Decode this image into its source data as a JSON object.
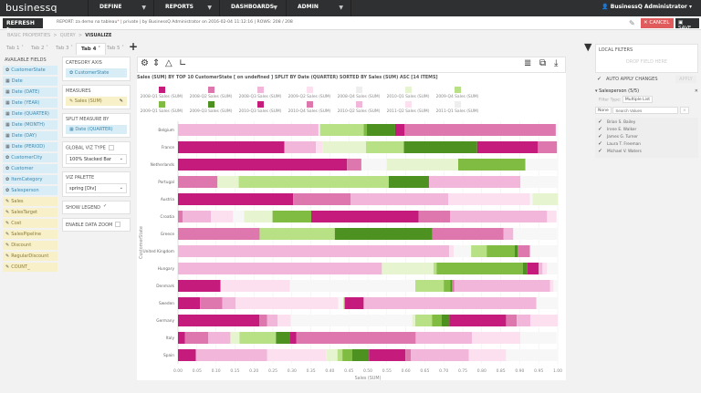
{
  "app": {
    "logo": "businessq",
    "user": "BusinessQ Administrator",
    "nav": [
      "DEFINE",
      "REPORTS",
      "DASHBOARDS",
      "ADMIN"
    ]
  },
  "toolbar": {
    "refresh": "REFRESH",
    "report_label": "REPORT:",
    "report_name": "za demo na tableau",
    "privacy": "private",
    "by": "by BusinessQ Administrator on",
    "date": "2016-02-04 11:12:16",
    "rows_label": "ROWS:",
    "rows": "208 / 208",
    "cancel": "CANCEL",
    "save": "SAVE"
  },
  "breadcrumb": [
    "BASIC PROPERTIES",
    "QUERY",
    "VISUALIZE"
  ],
  "tabs": [
    "Tab 1",
    "Tab 2",
    "Tab 3",
    "Tab 4",
    "Tab 5"
  ],
  "active_tab": "Tab 4",
  "fields": {
    "title": "AVAILABLE FIELDS",
    "items": [
      {
        "label": "CustomerState",
        "kind": "dim",
        "icon": "gear-icon"
      },
      {
        "label": "Date",
        "kind": "dim",
        "icon": "calendar-icon"
      },
      {
        "label": "Date (DATE)",
        "kind": "dim",
        "icon": "calendar-icon"
      },
      {
        "label": "Date (YEAR)",
        "kind": "dim",
        "icon": "calendar-icon"
      },
      {
        "label": "Date (QUARTER)",
        "kind": "dim",
        "icon": "calendar-icon"
      },
      {
        "label": "Date (MONTH)",
        "kind": "dim",
        "icon": "calendar-icon"
      },
      {
        "label": "Date (DAY)",
        "kind": "dim",
        "icon": "calendar-icon"
      },
      {
        "label": "Date (PERIOD)",
        "kind": "dim",
        "icon": "calendar-icon"
      },
      {
        "label": "CustomerCity",
        "kind": "dim",
        "icon": "gear-icon"
      },
      {
        "label": "Customer",
        "kind": "dim",
        "icon": "gear-icon"
      },
      {
        "label": "ItemCategory",
        "kind": "dim",
        "icon": "gear-icon"
      },
      {
        "label": "Salesperson",
        "kind": "dim",
        "icon": "gear-icon"
      },
      {
        "label": "Sales",
        "kind": "measure",
        "icon": "ruler-icon"
      },
      {
        "label": "SalesTarget",
        "kind": "measure",
        "icon": "ruler-icon"
      },
      {
        "label": "Cost",
        "kind": "measure",
        "icon": "ruler-icon"
      },
      {
        "label": "SalesPipeline",
        "kind": "measure",
        "icon": "ruler-icon"
      },
      {
        "label": "Discount",
        "kind": "measure",
        "icon": "ruler-icon"
      },
      {
        "label": "RegularDiscount",
        "kind": "measure",
        "icon": "ruler-icon"
      },
      {
        "label": "COUNT_",
        "kind": "measure",
        "icon": "ruler-icon"
      }
    ]
  },
  "config": {
    "category_axis": {
      "title": "CATEGORY AXIS",
      "value": "CustomerState"
    },
    "measures": {
      "title": "MEASURES",
      "value": "Sales (SUM)"
    },
    "split": {
      "title": "SPLIT MEASURE BY",
      "value": "Date (QUARTER)"
    },
    "viz_type": {
      "title": "GLOBAL VIZ TYPE",
      "value": "100% Stacked Bar"
    },
    "palette": {
      "title": "VIZ PALETTE",
      "value": "spring [Div]"
    },
    "show_legend": {
      "label": "SHOW LEGEND",
      "checked": true
    },
    "data_zoom": {
      "label": "ENABLE DATA ZOOM",
      "checked": false
    }
  },
  "filters": {
    "title": "LOCAL FILTERS",
    "drop": "DROP FIELD HERE",
    "auto_apply": "AUTO APPLY CHANGES",
    "apply": "APPLY",
    "field": "Salesperson (5/5)",
    "filter_type_label": "Filter Type:",
    "filter_type": "Multiple List",
    "none": "None",
    "search_placeholder": "Search Values",
    "names": [
      "Brian S. Bailey",
      "Irene E. Walker",
      "James G. Turner",
      "Laura T. Freeman",
      "Michael V. Waters"
    ]
  },
  "chart_data": {
    "type": "bar",
    "orientation": "horizontal",
    "stacked": "100%",
    "title": "Sales (SUM) BY TOP 10 CustomerState [ on undefined ] SPLIT BY Date (QUARTER) SORTED BY Sales (SUM) ASC [14 ITEMS]",
    "xlabel": "Sales (SUM)",
    "ylabel": "CustomerState",
    "xlim": [
      0,
      1
    ],
    "grid": true,
    "legend": "top",
    "xticks": [
      "0.00",
      "0.05",
      "0.10",
      "0.15",
      "0.20",
      "0.25",
      "0.30",
      "0.35",
      "0.40",
      "0.45",
      "0.50",
      "0.55",
      "0.60",
      "0.65",
      "0.70",
      "0.75",
      "0.80",
      "0.85",
      "0.90",
      "0.95",
      "1.00"
    ],
    "categories": [
      "Belgium",
      "France",
      "Netherlands",
      "Portugal",
      "Austria",
      "Croatia",
      "Greece",
      "United Kingdom",
      "Hungary",
      "Denmark",
      "Sweden",
      "Germany",
      "Italy",
      "Spain"
    ],
    "series": [
      {
        "name": "2008-Q1 Sales (SUM)",
        "color": "#c51b7d",
        "values": [
          0,
          0.28,
          0.445,
          0,
          0.303,
          0,
          0,
          0,
          0,
          0.112,
          0.058,
          0.214,
          0.018,
          0.047
        ]
      },
      {
        "name": "2008-Q2 Sales (SUM)",
        "color": "#de77ae",
        "values": [
          0,
          0,
          0.038,
          0.104,
          0.152,
          0.012,
          0.215,
          0,
          0,
          0,
          0.059,
          0.021,
          0.062,
          0
        ]
      },
      {
        "name": "2008-Q3 Sales (SUM)",
        "color": "#f1b6da",
        "values": [
          0.37,
          0.083,
          0,
          0,
          0.257,
          0.075,
          0,
          0.714,
          0.537,
          0,
          0.035,
          0.027,
          0.058,
          0.188
        ]
      },
      {
        "name": "2009-Q2 Sales (SUM)",
        "color": "#fde0ef",
        "values": [
          0,
          0.017,
          0,
          0,
          0.215,
          0.058,
          0,
          0.012,
          0,
          0.183,
          0.27,
          0.035,
          0,
          0.155
        ]
      },
      {
        "name": "2008-Q4 Sales (SUM)",
        "color": "#f7f7f7",
        "values": [
          0.004,
          0,
          0.067,
          0,
          0.007,
          0.029,
          0,
          0.046,
          0,
          0.33,
          0.014,
          0.32,
          0,
          0
        ]
      },
      {
        "name": "2010-Q1 Sales (SUM)",
        "color": "#e6f5d0",
        "values": [
          0,
          0.115,
          0.188,
          0.056,
          0.067,
          0.075,
          0,
          0,
          0.136,
          0,
          0,
          0.008,
          0.024,
          0.03
        ]
      },
      {
        "name": "2009-Q4 Sales (SUM)",
        "color": "#b8e186",
        "values": [
          0.115,
          0.1,
          0,
          0.395,
          0,
          0,
          0.198,
          0.041,
          0.008,
          0.075,
          0.003,
          0.044,
          0.096,
          0.013
        ]
      },
      {
        "name": "2009-Q1 Sales (SUM)",
        "color": "#7fbc41",
        "values": [
          0.008,
          0,
          0.177,
          0,
          0,
          0.102,
          0,
          0.074,
          0.227,
          0.017,
          0,
          0.025,
          0,
          0.026
        ]
      },
      {
        "name": "2009-Q3 Sales (SUM)",
        "color": "#4d9221",
        "values": [
          0.075,
          0.193,
          0,
          0.106,
          0,
          0,
          0.257,
          0.008,
          0.012,
          0.005,
          0,
          0.021,
          0.036,
          0.044
        ]
      },
      {
        "name": "2010-Q3 Sales (SUM)",
        "color": "#c51b7d",
        "values": [
          0.025,
          0.16,
          0,
          0,
          0,
          0.283,
          0,
          0,
          0.03,
          0,
          0.05,
          0.149,
          0.018,
          0.096
        ]
      },
      {
        "name": "2010-Q4 Sales (SUM)",
        "color": "#de77ae",
        "values": [
          0.398,
          0.05,
          0,
          0,
          0,
          0.083,
          0.187,
          0.032,
          0,
          0.006,
          0,
          0.028,
          0.314,
          0.014
        ]
      },
      {
        "name": "2010-Q2 Sales (SUM)",
        "color": "#f1b6da",
        "values": [
          0,
          0,
          0,
          0.241,
          0,
          0.255,
          0.026,
          0,
          0.01,
          0.252,
          0.455,
          0.036,
          0.148,
          0.153
        ]
      },
      {
        "name": "2011-Q2 Sales (SUM)",
        "color": "#fde0ef",
        "values": [
          0,
          0,
          0,
          0,
          0,
          0.025,
          0,
          0,
          0.012,
          0.009,
          0,
          0.072,
          0.128,
          0.098
        ]
      },
      {
        "name": "2011-Q1 Sales (SUM)",
        "color": "#f7f7f7",
        "values": [
          0.005,
          0,
          0.085,
          0.097,
          0,
          0,
          0.115,
          0.073,
          0.028,
          0.011,
          0.056,
          0,
          0.095,
          0.136
        ]
      }
    ]
  }
}
